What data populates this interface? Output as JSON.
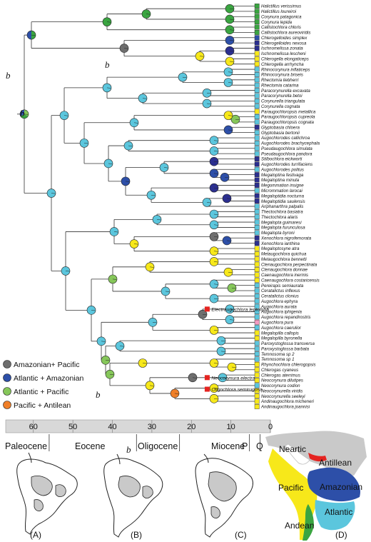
{
  "colors": {
    "Neotropical_turquoise": "#5bc6dd",
    "Atlantic_Amazonian_blue": "#2d4fa8",
    "Atlantic_Pacific_lightgreen": "#86c75a",
    "Pacific_yellow": "#f7e81a",
    "Andean_green": "#3aa541",
    "Amazonian_Pacific_grey": "#6e6e6e",
    "Pacific_Antilean_orange": "#ef7f28",
    "fossil_red": "#e52421",
    "navy": "#2b2f8f",
    "map_land_grey": "#c9c9c9"
  },
  "taxa": [
    {
      "name": "Halictillus verissimus",
      "state": "green"
    },
    {
      "name": "Halictillus loureiroi",
      "state": "green"
    },
    {
      "name": "Corynura patagonica",
      "state": "green"
    },
    {
      "name": "Corynura lepida",
      "state": "green"
    },
    {
      "name": "Callistochlora chloris",
      "state": "green"
    },
    {
      "name": "Callistochlora aureoviridis",
      "state": "green"
    },
    {
      "name": "Chlerogelloides simplex",
      "state": "blue"
    },
    {
      "name": "Chlerogelloides nexosa",
      "state": "navy"
    },
    {
      "name": "Ischnomelissa zonata",
      "state": "navy"
    },
    {
      "name": "Ischnomelissa lescheni",
      "state": "yellow"
    },
    {
      "name": "Chlerogella elongaticeps",
      "state": "yellow"
    },
    {
      "name": "Chlerogella arrhyncha",
      "state": "yellow"
    },
    {
      "name": "Rhinocorynura inflaticeps",
      "state": "cyan"
    },
    {
      "name": "Rhinocorynura briseis",
      "state": "cyan"
    },
    {
      "name": "Rhectomia liebherri",
      "state": "cyan"
    },
    {
      "name": "Rhectomia catarina",
      "state": "cyan"
    },
    {
      "name": "Paracorynurella excavata",
      "state": "cyan"
    },
    {
      "name": "Paracorynurella betoi",
      "state": "cyan"
    },
    {
      "name": "Corynurella triangulata",
      "state": "cyan"
    },
    {
      "name": "Corynurella cognata",
      "state": "cyan"
    },
    {
      "name": "Paraugochloropsis metallica",
      "state": "yellow"
    },
    {
      "name": "Paraugochloropsis cupreola",
      "state": "cyan"
    },
    {
      "name": "Paraugochloropsis cognata",
      "state": "cyan"
    },
    {
      "name": "Glyptobasia chloera",
      "state": "navy"
    },
    {
      "name": "Glyptobasia bertonii",
      "state": "cyan"
    },
    {
      "name": "Augochlorodes callichroa",
      "state": "cyan"
    },
    {
      "name": "Augochlorodes brachycephala",
      "state": "cyan"
    },
    {
      "name": "Pseudaugochlora simulata",
      "state": "cyan"
    },
    {
      "name": "Pseudaugochlora pandora",
      "state": "cyan"
    },
    {
      "name": "Stilbochlora eickworti",
      "state": "navy"
    },
    {
      "name": "Augochlorodes turrifaciens",
      "state": "navy"
    },
    {
      "name": "Augochlorodes politus",
      "state": "cyan"
    },
    {
      "name": "Megaloptina festivaga",
      "state": "navy"
    },
    {
      "name": "Megaloptina minuta",
      "state": "navy"
    },
    {
      "name": "Megommation insigne",
      "state": "navy"
    },
    {
      "name": "Micrommation larocai",
      "state": "cyan"
    },
    {
      "name": "Megaloptidia nocturna",
      "state": "navy"
    },
    {
      "name": "Megaloptidia saulensis",
      "state": "navy"
    },
    {
      "name": "Ariphanarthra palpalis",
      "state": "cyan"
    },
    {
      "name": "Thectochlora basiatra",
      "state": "cyan"
    },
    {
      "name": "Thectochlora alaris",
      "state": "cyan"
    },
    {
      "name": "Megalopta guimaresi",
      "state": "cyan"
    },
    {
      "name": "Megalopta furunculosa",
      "state": "cyan"
    },
    {
      "name": "Megalopta byroni",
      "state": "cyan"
    },
    {
      "name": "Xenochlora nigrofemorata",
      "state": "navy"
    },
    {
      "name": "Xenochlora ianthina",
      "state": "navy"
    },
    {
      "name": "Megaloptosyne atra",
      "state": "yellow"
    },
    {
      "name": "Metaugochlora quichua",
      "state": "yellow"
    },
    {
      "name": "Metaugochlora bennetti",
      "state": "yellow"
    },
    {
      "name": "Ctenaugochlora perpectinata",
      "state": "yellow"
    },
    {
      "name": "Ctenaugochlora donnae",
      "state": "yellow"
    },
    {
      "name": "Caenaugochlora inermis",
      "state": "yellow"
    },
    {
      "name": "Caenaugochlora costaricensis",
      "state": "yellow"
    },
    {
      "name": "Pereirapis semiaurata",
      "state": "cyan"
    },
    {
      "name": "Ceratalictus inflexus",
      "state": "cyan"
    },
    {
      "name": "Ceratalictus clonius",
      "state": "cyan"
    },
    {
      "name": "Augochlora ephyra",
      "state": "cyan"
    },
    {
      "name": "Augochlora aurata",
      "state": "cyan"
    },
    {
      "name": "Augochlora iphigenia",
      "state": "cyan"
    },
    {
      "name": "Augochlora repandirostris",
      "state": "cyan"
    },
    {
      "name": "Augochlora pura",
      "state": "pink"
    },
    {
      "name": "Augochlora caerulior",
      "state": "cyan"
    },
    {
      "name": "Megalopilla callopis",
      "state": "yellow"
    },
    {
      "name": "Megalopilla byronella",
      "state": "yellow"
    },
    {
      "name": "Paroxystoglossa transversa",
      "state": "cyan"
    },
    {
      "name": "Paroxystoglossa barbata",
      "state": "cyan"
    },
    {
      "name": "Temnosoma sp 2",
      "state": "cyan"
    },
    {
      "name": "Temnosoma sp 1",
      "state": "cyan"
    },
    {
      "name": "Rhynchochlora chlerogopsis",
      "state": "yellow"
    },
    {
      "name": "Chlerogas cyaneus",
      "state": "yellow"
    },
    {
      "name": "Chlerogas aterrimus",
      "state": "yellow"
    },
    {
      "name": "Neocorynura dilutipes",
      "state": "yellow"
    },
    {
      "name": "Neocorynura codion",
      "state": "cyan"
    },
    {
      "name": "Neocorynurella viridis",
      "state": "yellow"
    },
    {
      "name": "Neocorynurella seeleyi",
      "state": "yellow"
    },
    {
      "name": "Andinaugochlora micheneri",
      "state": "yellow"
    },
    {
      "name": "Andinaugochlora joannisi",
      "state": "yellow"
    }
  ],
  "fossils": [
    {
      "name": "Electraugochlora leptoloba",
      "row": 57.5,
      "age_ma": 16
    },
    {
      "name": "Neocorynura electra",
      "row": 70.5,
      "age_ma": 16
    },
    {
      "name": "Oligochlora semirugosa",
      "row": 72.7,
      "age_ma": 16
    }
  ],
  "b_marker": "b",
  "legend": [
    {
      "label": "Amazonian+ Pacific",
      "color": "#6e6e6e"
    },
    {
      "label": "Atlantic + Amazonian",
      "color": "#2d4fa8"
    },
    {
      "label": "Atlantic + Pacific",
      "color": "#86c75a"
    },
    {
      "label": "Pacific + Antilean",
      "color": "#ef7f28"
    }
  ],
  "timescale": {
    "ticks": [
      60,
      50,
      40,
      30,
      20,
      10,
      0
    ],
    "epochs": [
      "Paleocene",
      "Eocene",
      "Oligocene",
      "Miocene",
      "P",
      "Q"
    ],
    "age_range_ma": [
      67,
      0
    ]
  },
  "map_regions": [
    "Neartic",
    "Antillean",
    "Pacific",
    "Amazonian",
    "Atlantic",
    "Andean"
  ],
  "panel_labels": [
    "(A)",
    "(B)",
    "(C)",
    "(D)"
  ]
}
